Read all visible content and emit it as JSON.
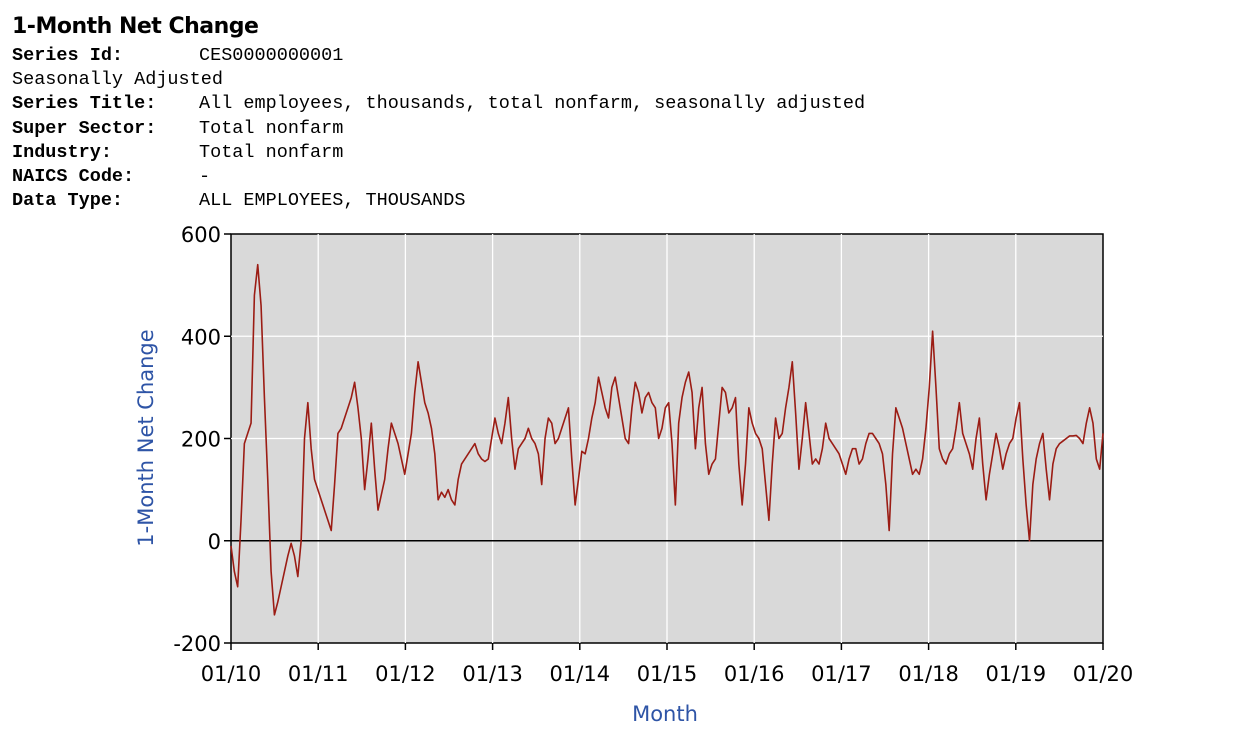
{
  "header": {
    "title": "1-Month Net Change",
    "meta": [
      {
        "key": "Series Id:",
        "value": "CES0000000001"
      },
      {
        "key": "",
        "value": "Seasonally Adjusted"
      },
      {
        "key": "Series Title:",
        "value": "All employees, thousands, total nonfarm, seasonally adjusted"
      },
      {
        "key": "Super Sector:",
        "value": "Total nonfarm"
      },
      {
        "key": "Industry:",
        "value": "Total nonfarm"
      },
      {
        "key": "NAICS Code:",
        "value": "-"
      },
      {
        "key": "Data Type:",
        "value": "ALL EMPLOYEES, THOUSANDS"
      }
    ]
  },
  "colors": {
    "line": "#9b1c14",
    "plot_bg": "#d9d9d9",
    "grid": "#ffffff",
    "axis_label": "#2e54a6",
    "zero_line": "#000000"
  },
  "chart_data": {
    "type": "line",
    "title": "1-Month Net Change",
    "xlabel": "Month",
    "ylabel": "1-Month Net Change",
    "ylim": [
      -200,
      600
    ],
    "y_ticks": [
      -200,
      0,
      200,
      400,
      600
    ],
    "x_ticks": [
      "01/10",
      "01/11",
      "01/12",
      "01/13",
      "01/14",
      "01/15",
      "01/16",
      "01/17",
      "01/18",
      "01/19",
      "01/20"
    ],
    "x_start": "01/10",
    "x_end": "01/20",
    "grid": true,
    "series": [
      {
        "values": [
          -10,
          -60,
          -90,
          40,
          190,
          210,
          230,
          480,
          540,
          460,
          280,
          120,
          -60,
          -145,
          -120,
          -90,
          -60,
          -30,
          -5,
          -30,
          -70,
          0,
          200,
          270,
          180,
          120,
          100,
          80,
          60,
          40,
          20,
          110,
          210,
          220,
          240,
          260,
          280,
          310,
          260,
          200,
          100,
          160,
          230,
          140,
          60,
          90,
          120,
          180,
          230,
          210,
          190,
          160,
          130,
          170,
          210,
          290,
          350,
          310,
          270,
          250,
          220,
          170,
          80,
          95,
          85,
          100,
          80,
          70,
          120,
          150,
          160,
          170,
          180,
          190,
          170,
          160,
          155,
          160,
          200,
          240,
          210,
          190,
          230,
          280,
          200,
          140,
          180,
          190,
          200,
          220,
          200,
          190,
          170,
          110,
          200,
          240,
          230,
          190,
          200,
          220,
          240,
          260,
          160,
          70,
          120,
          175,
          170,
          200,
          240,
          270,
          320,
          290,
          260,
          240,
          300,
          320,
          280,
          240,
          200,
          190,
          260,
          310,
          290,
          250,
          280,
          290,
          270,
          260,
          200,
          220,
          260,
          270,
          190,
          70,
          230,
          280,
          310,
          330,
          290,
          180,
          260,
          300,
          190,
          130,
          150,
          160,
          230,
          300,
          290,
          250,
          260,
          280,
          150,
          70,
          150,
          260,
          230,
          210,
          200,
          180,
          110,
          40,
          150,
          240,
          200,
          210,
          260,
          300,
          350,
          250,
          140,
          200,
          270,
          210,
          150,
          160,
          150,
          180,
          230,
          200,
          190,
          180,
          170,
          150,
          130,
          160,
          180,
          180,
          150,
          160,
          190,
          210,
          210,
          200,
          190,
          170,
          110,
          20,
          170,
          260,
          240,
          220,
          190,
          160,
          130,
          140,
          130,
          160,
          220,
          300,
          410,
          300,
          180,
          160,
          150,
          170,
          180,
          220,
          270,
          210,
          190,
          170,
          140,
          200,
          240,
          150,
          80,
          130,
          170,
          210,
          180,
          140,
          170,
          190,
          200,
          240,
          270,
          160,
          70,
          0,
          110,
          160,
          190,
          210,
          140,
          80,
          150,
          180,
          190,
          195,
          200,
          205,
          205,
          206,
          200,
          190,
          230,
          260,
          230,
          160,
          140,
          210
        ]
      }
    ]
  }
}
